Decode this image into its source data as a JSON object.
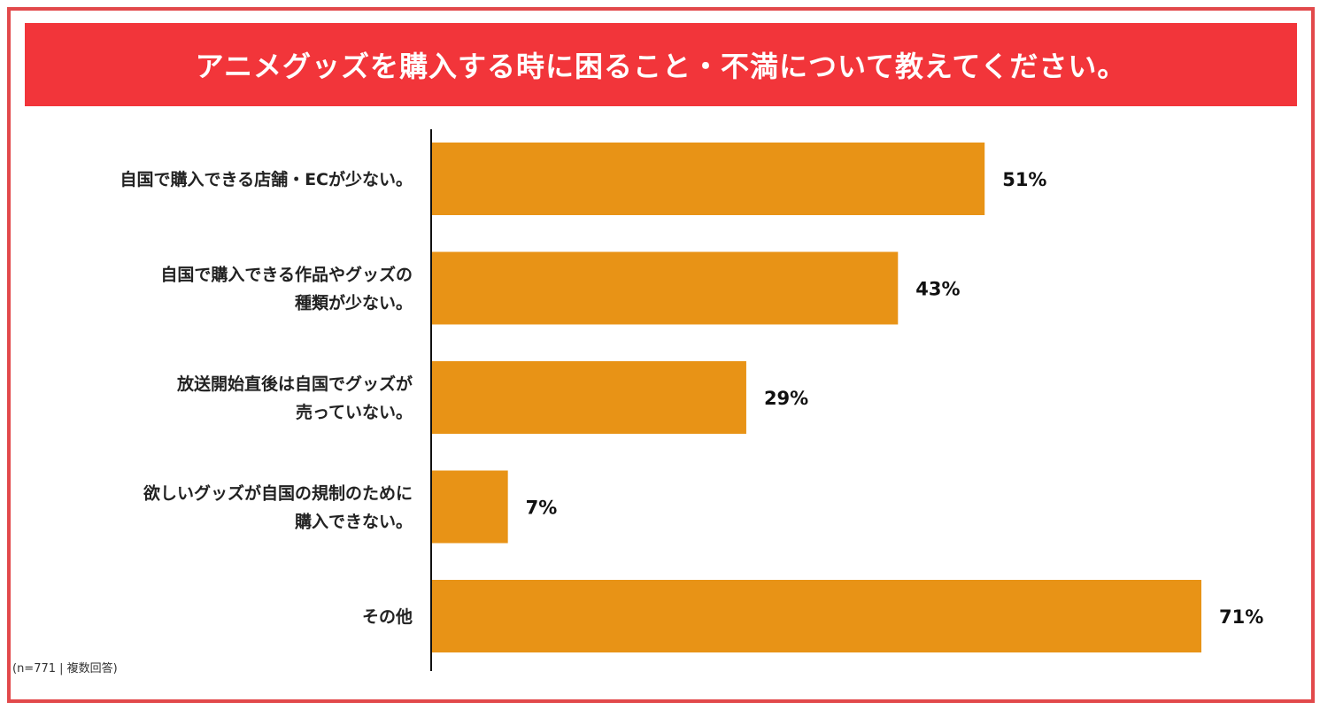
{
  "title": "アニメグッズを購入する時に困ること・不満について教えてください。",
  "note": "(n=771 | 複数回答)",
  "colors": {
    "frame": "#e2494b",
    "title_bg": "#f2353a",
    "title_text": "#ffffff",
    "bar": "#e89316",
    "axis": "#111111",
    "label_text": "#222222"
  },
  "chart_data": {
    "type": "bar",
    "orientation": "horizontal",
    "categories": [
      [
        "自国で購入できる店舗・ECが少ない。"
      ],
      [
        "自国で購入できる作品やグッズの",
        "種類が少ない。"
      ],
      [
        "放送開始直後は自国でグッズが",
        "売っていない。"
      ],
      [
        "欲しいグッズが自国の規制のために",
        "購入できない。"
      ],
      [
        "その他"
      ]
    ],
    "values": [
      51,
      43,
      29,
      7,
      71
    ],
    "value_labels": [
      "51%",
      "43%",
      "29%",
      "7%",
      "71%"
    ],
    "unit": "%",
    "xlim": [
      0,
      71
    ],
    "grid": false,
    "legend": "none"
  }
}
